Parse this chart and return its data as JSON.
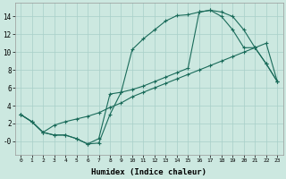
{
  "background_color": "#cce8e0",
  "grid_color": "#a8cfc8",
  "line_color": "#1a6b5a",
  "xlabel": "Humidex (Indice chaleur)",
  "xlim": [
    -0.5,
    23.5
  ],
  "ylim": [
    -1.5,
    15.5
  ],
  "xticks": [
    0,
    1,
    2,
    3,
    4,
    5,
    6,
    7,
    8,
    9,
    10,
    11,
    12,
    13,
    14,
    15,
    16,
    17,
    18,
    19,
    20,
    21,
    22,
    23
  ],
  "yticks": [
    0,
    2,
    4,
    6,
    8,
    10,
    12,
    14
  ],
  "ytick_labels": [
    "-0",
    "2",
    "4",
    "6",
    "8",
    "10",
    "12",
    "14"
  ],
  "line1_x": [
    0,
    1,
    2,
    3,
    4,
    5,
    6,
    7,
    8,
    9,
    10,
    11,
    12,
    13,
    14,
    15,
    16,
    17,
    18,
    19,
    20,
    21,
    22,
    23
  ],
  "line1_y": [
    3.0,
    2.2,
    1.0,
    0.7,
    0.7,
    0.3,
    -0.3,
    -0.2,
    3.0,
    5.5,
    10.3,
    11.5,
    12.5,
    13.5,
    14.1,
    14.2,
    14.5,
    14.7,
    14.5,
    14.0,
    12.5,
    10.5,
    8.7,
    6.7
  ],
  "line2_x": [
    0,
    1,
    2,
    3,
    4,
    5,
    6,
    7,
    8,
    9,
    10,
    11,
    12,
    13,
    14,
    15,
    16,
    17,
    18,
    19,
    20,
    21,
    22,
    23
  ],
  "line2_y": [
    3.0,
    2.2,
    1.0,
    1.8,
    2.2,
    2.5,
    2.8,
    3.2,
    3.8,
    4.3,
    5.0,
    5.5,
    6.0,
    6.5,
    7.0,
    7.5,
    8.0,
    8.5,
    9.0,
    9.5,
    10.0,
    10.5,
    11.0,
    6.7
  ],
  "line3_x": [
    0,
    1,
    2,
    3,
    4,
    5,
    6,
    7,
    8,
    9,
    10,
    11,
    12,
    13,
    14,
    15,
    16,
    17,
    18,
    19,
    20,
    21,
    22,
    23
  ],
  "line3_y": [
    3.0,
    2.2,
    1.0,
    0.7,
    0.7,
    0.3,
    -0.3,
    0.3,
    5.3,
    5.5,
    5.8,
    6.2,
    6.7,
    7.2,
    7.7,
    8.2,
    14.5,
    14.7,
    14.0,
    12.5,
    10.5,
    10.5,
    8.7,
    6.7
  ]
}
